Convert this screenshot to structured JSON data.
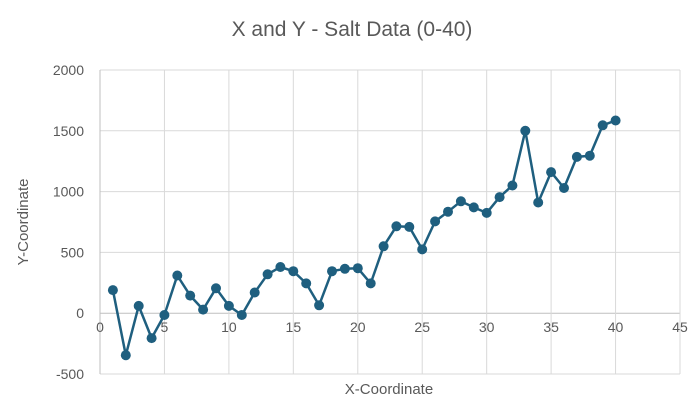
{
  "chart_data": {
    "type": "line",
    "title": "X and Y - Salt Data (0-40)",
    "xlabel": "X-Coordinate",
    "ylabel": "Y-Coordinate",
    "xlim": [
      0,
      45
    ],
    "ylim": [
      -500,
      2000
    ],
    "x_ticks": [
      0,
      5,
      10,
      15,
      20,
      25,
      30,
      35,
      40,
      45
    ],
    "y_ticks": [
      -500,
      0,
      500,
      1000,
      1500,
      2000
    ],
    "grid": true,
    "legend": "none",
    "series_color": "#1f5f7f",
    "series": [
      {
        "x": [
          1,
          2,
          3,
          4,
          5,
          6,
          7,
          8,
          9,
          10,
          11,
          12,
          13,
          14,
          15,
          16,
          17,
          18,
          19,
          20,
          21,
          22,
          23,
          24,
          25,
          26,
          27,
          28,
          29,
          30,
          31,
          32,
          33,
          34,
          35,
          36,
          37,
          38,
          39,
          40
        ],
        "y": [
          190,
          -345,
          60,
          -205,
          -15,
          310,
          145,
          30,
          205,
          60,
          -15,
          170,
          320,
          380,
          345,
          245,
          65,
          345,
          365,
          370,
          245,
          550,
          715,
          710,
          525,
          755,
          835,
          920,
          870,
          825,
          955,
          1050,
          1500,
          910,
          1160,
          1030,
          1285,
          1295,
          1545,
          1585
        ]
      }
    ]
  }
}
